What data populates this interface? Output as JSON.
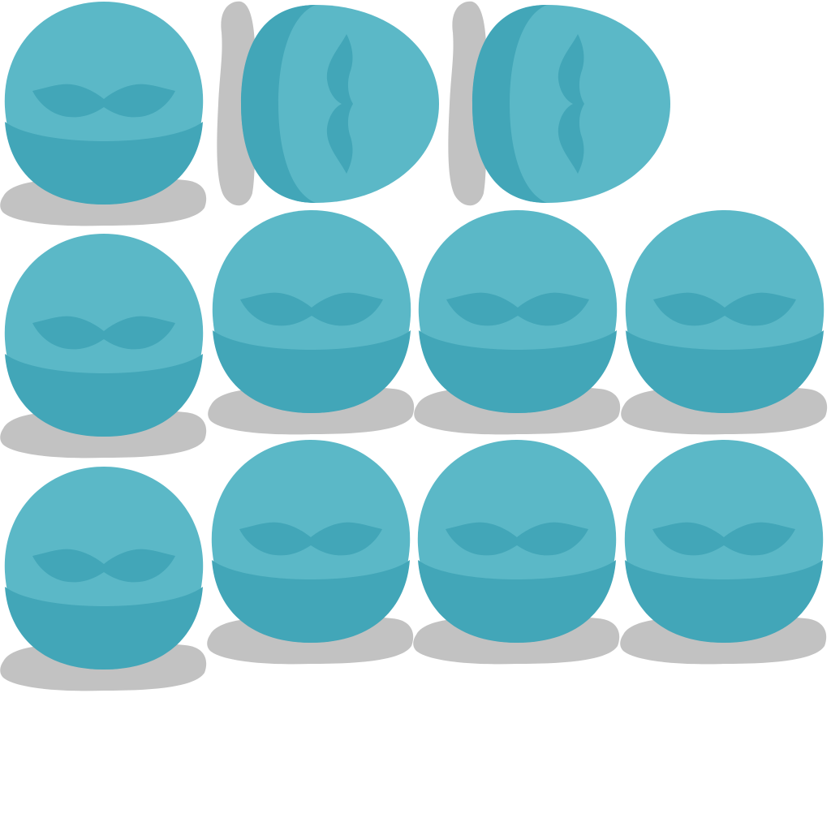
{
  "sheet": {
    "background": "#ffffff",
    "palette": {
      "body": "#5bb8c7",
      "body_shade": "#42a6b8",
      "mustache": "#42a6b8",
      "shadow": "#c2c2c2"
    },
    "sprites": [
      {
        "name": "blob-front-frame-1",
        "facing": "front"
      },
      {
        "name": "blob-side-frame-1",
        "facing": "side"
      },
      {
        "name": "blob-side-frame-2",
        "facing": "side"
      },
      {
        "name": "blob-front-frame-2",
        "facing": "front"
      },
      {
        "name": "blob-front-frame-3",
        "facing": "front"
      },
      {
        "name": "blob-front-frame-4",
        "facing": "front"
      },
      {
        "name": "blob-front-frame-5",
        "facing": "front"
      },
      {
        "name": "blob-front-frame-6",
        "facing": "front"
      },
      {
        "name": "blob-front-frame-7",
        "facing": "front"
      },
      {
        "name": "blob-front-frame-8",
        "facing": "front"
      },
      {
        "name": "blob-front-frame-9",
        "facing": "front"
      }
    ]
  }
}
